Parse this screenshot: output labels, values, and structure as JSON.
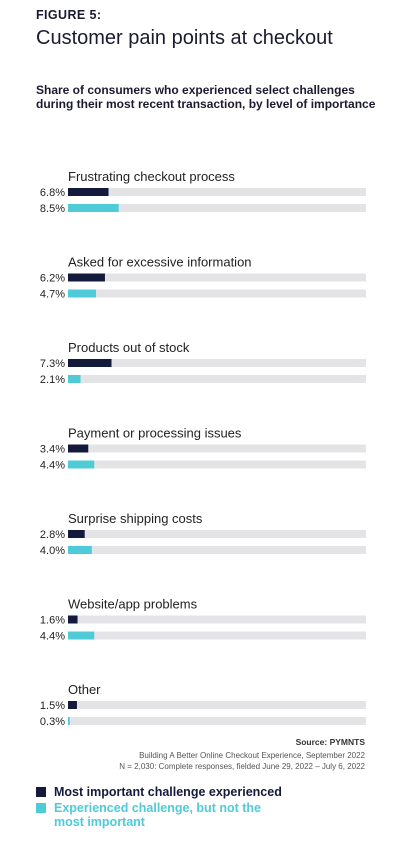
{
  "figure_label": "FIGURE 5:",
  "title": "Customer pain points at checkout",
  "subtitle": "Share of consumers who experienced select challenges during their most recent transaction, by level of importance",
  "colors": {
    "primary": "#141a3c",
    "secondary": "#4ecbd6",
    "track": "#e4e4e6"
  },
  "chart_data": {
    "type": "bar",
    "orientation": "horizontal",
    "value_suffix": "%",
    "xlim": [
      0,
      50
    ],
    "categories": [
      "Frustrating checkout process",
      "Asked for excessive information",
      "Products out of stock",
      "Payment or processing issues",
      "Surprise shipping costs",
      "Website/app problems",
      "Other"
    ],
    "series": [
      {
        "name": "Most important challenge experienced",
        "values": [
          6.8,
          6.2,
          7.3,
          3.4,
          2.8,
          1.6,
          1.5
        ]
      },
      {
        "name": "Experienced challenge, but not the most important",
        "values": [
          8.5,
          4.7,
          2.1,
          4.4,
          4.0,
          4.4,
          0.3
        ]
      }
    ],
    "data_labels": [
      [
        "6.8%",
        "8.5%"
      ],
      [
        "6.2%",
        "4.7%"
      ],
      [
        "7.3%",
        "2.1%"
      ],
      [
        "3.4%",
        "4.4%"
      ],
      [
        "2.8%",
        "4.0%"
      ],
      [
        "1.6%",
        "4.4%"
      ],
      [
        "1.5%",
        "0.3%"
      ]
    ],
    "legend_position": "bottom"
  },
  "footer": {
    "source": "Source: PYMNTS",
    "report": "Building A Better Online Checkout Experience, September 2022",
    "note": "N = 2,030: Complete responses, fielded June 29, 2022 – July 6, 2022"
  },
  "legend": {
    "primary_label": "Most important challenge experienced",
    "secondary_label_line1": "Experienced challenge, but not the",
    "secondary_label_line2": "most important"
  }
}
